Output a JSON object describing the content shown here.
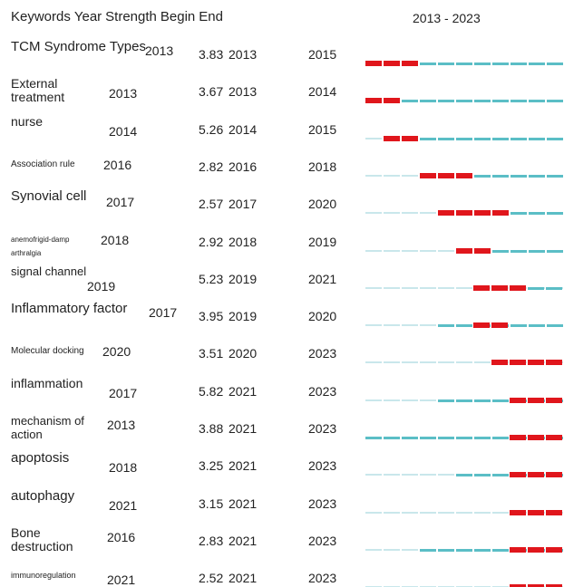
{
  "header": {
    "columns": [
      "Keywords",
      "Year",
      "Strength",
      "Begin",
      "End"
    ],
    "range": "2013 - 2023"
  },
  "rows": [
    {
      "keyword": "TCM Syndrome Types",
      "year": 2013,
      "strength": 3.83,
      "begin": 2013,
      "end": 2015
    },
    {
      "keyword": "External treatment",
      "year": 2013,
      "strength": 3.67,
      "begin": 2013,
      "end": 2014
    },
    {
      "keyword": "nurse",
      "year": 2014,
      "strength": 5.26,
      "begin": 2014,
      "end": 2015
    },
    {
      "keyword": "Association rule",
      "year": 2016,
      "strength": 2.82,
      "begin": 2016,
      "end": 2018
    },
    {
      "keyword": "Synovial cell",
      "year": 2017,
      "strength": 2.57,
      "begin": 2017,
      "end": 2020
    },
    {
      "keyword": "anemofrigid-damp arthralgia",
      "year": 2018,
      "strength": 2.92,
      "begin": 2018,
      "end": 2019
    },
    {
      "keyword": "signal channel",
      "year": 2019,
      "strength": 5.23,
      "begin": 2019,
      "end": 2021
    },
    {
      "keyword": "Inflammatory factor",
      "year": 2017,
      "strength": 3.95,
      "begin": 2019,
      "end": 2020
    },
    {
      "keyword": "Molecular docking",
      "year": 2020,
      "strength": 3.51,
      "begin": 2020,
      "end": 2023
    },
    {
      "keyword": "inflammation",
      "year": 2017,
      "strength": 5.82,
      "begin": 2021,
      "end": 2023
    },
    {
      "keyword": "mechanism of action",
      "year": 2013,
      "strength": 3.88,
      "begin": 2021,
      "end": 2023
    },
    {
      "keyword": "apoptosis",
      "year": 2018,
      "strength": 3.25,
      "begin": 2021,
      "end": 2023
    },
    {
      "keyword": "autophagy",
      "year": 2021,
      "strength": 3.15,
      "begin": 2021,
      "end": 2023
    },
    {
      "keyword": "Bone destruction",
      "year": 2016,
      "strength": 2.83,
      "begin": 2021,
      "end": 2023
    },
    {
      "keyword": "immunoregulation",
      "year": 2021,
      "strength": 2.52,
      "begin": 2021,
      "end": 2023
    }
  ]
}
